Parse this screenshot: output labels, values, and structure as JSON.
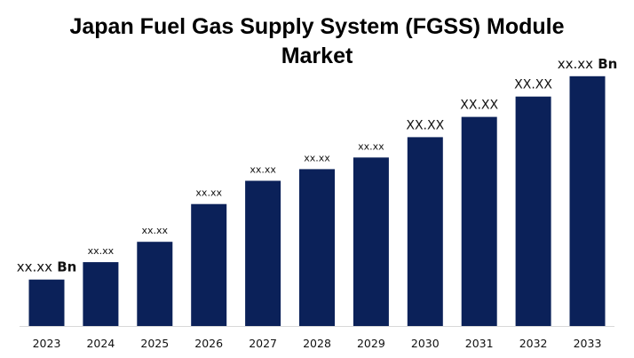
{
  "chart_data": {
    "type": "bar",
    "title": "Japan Fuel Gas Supply System (FGSS) Module\nMarket",
    "categories": [
      "2023",
      "2024",
      "2025",
      "2026",
      "2027",
      "2028",
      "2029",
      "2030",
      "2031",
      "2032",
      "2033"
    ],
    "values": [
      16,
      22,
      29,
      42,
      50,
      54,
      58,
      65,
      72,
      79,
      86
    ],
    "data_labels": [
      {
        "value": "xx.xx",
        "unit": "Bn"
      },
      {
        "value": "xx.xx",
        "unit": ""
      },
      {
        "value": "xx.xx",
        "unit": ""
      },
      {
        "value": "xx.xx",
        "unit": ""
      },
      {
        "value": "xx.xx",
        "unit": ""
      },
      {
        "value": "xx.xx",
        "unit": ""
      },
      {
        "value": "xx.xx",
        "unit": ""
      },
      {
        "value": "XX.XX",
        "unit": ""
      },
      {
        "value": "XX.XX",
        "unit": ""
      },
      {
        "value": "XX.XX",
        "unit": ""
      },
      {
        "value": "xx.xx",
        "unit": "Bn"
      }
    ],
    "label_emphasis": [
      "big",
      "small",
      "small",
      "small",
      "small",
      "small",
      "small",
      "mid",
      "mid",
      "mid",
      "big"
    ],
    "xlabel": "",
    "ylabel": "",
    "ylim": [
      0,
      100
    ],
    "grid": false,
    "legend": "none",
    "bar_color": "#0b2159",
    "axis_color": "#d9d9d9"
  }
}
